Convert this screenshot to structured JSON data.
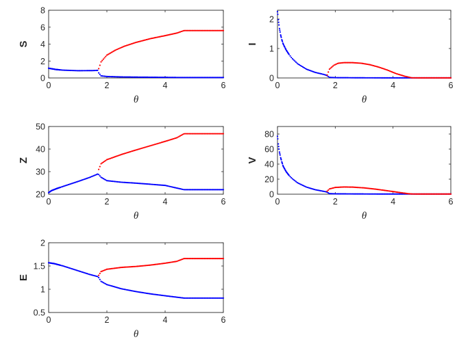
{
  "chart_data": [
    {
      "type": "scatter",
      "xlabel": "θ",
      "ylabel": "S",
      "xlim": [
        0,
        6
      ],
      "ylim": [
        0,
        8
      ],
      "xticks": [
        "0",
        "2",
        "4",
        "6"
      ],
      "yticks": [
        "0",
        "2",
        "4",
        "6",
        "8"
      ],
      "series": [
        {
          "color": "#0000ff",
          "x": [
            0,
            0.25,
            0.5,
            1.0,
            1.5,
            1.7,
            1.72,
            1.8,
            2.0,
            2.5,
            3,
            4,
            4.65,
            5,
            6
          ],
          "y": [
            1.15,
            1.0,
            0.92,
            0.86,
            0.87,
            0.9,
            0.6,
            0.25,
            0.17,
            0.12,
            0.1,
            0.07,
            0.05,
            0.05,
            0.05
          ]
        },
        {
          "color": "#ff0000",
          "x": [
            1.72,
            1.8,
            2.0,
            2.3,
            2.6,
            3.0,
            3.5,
            4.0,
            4.4,
            4.65,
            5,
            6
          ],
          "y": [
            1.1,
            1.9,
            2.7,
            3.3,
            3.75,
            4.2,
            4.65,
            5.0,
            5.3,
            5.6,
            5.6,
            5.6
          ]
        }
      ]
    },
    {
      "type": "scatter",
      "xlabel": "θ",
      "ylabel": "I",
      "xlim": [
        0,
        6
      ],
      "ylim": [
        0,
        2.3
      ],
      "xticks": [
        "0",
        "2",
        "4",
        "6"
      ],
      "yticks": [
        "0",
        "1",
        "2"
      ],
      "series": [
        {
          "color": "#0000ff",
          "x": [
            0,
            0.05,
            0.1,
            0.15,
            0.2,
            0.3,
            0.4,
            0.5,
            0.7,
            1.0,
            1.3,
            1.6,
            1.7,
            1.8,
            2.0,
            3,
            4,
            5,
            6
          ],
          "y": [
            2.25,
            1.8,
            1.5,
            1.3,
            1.15,
            0.95,
            0.8,
            0.67,
            0.48,
            0.3,
            0.19,
            0.12,
            0.09,
            0.02,
            0.01,
            0.005,
            0.003,
            0.003,
            0.003
          ]
        },
        {
          "color": "#ff0000",
          "x": [
            1.72,
            1.8,
            1.95,
            2.1,
            2.3,
            2.6,
            2.9,
            3.2,
            3.5,
            3.8,
            4.1,
            4.4,
            4.65,
            5,
            6
          ],
          "y": [
            0.1,
            0.3,
            0.43,
            0.5,
            0.52,
            0.52,
            0.5,
            0.45,
            0.37,
            0.27,
            0.15,
            0.06,
            0.005,
            0.003,
            0.003
          ]
        }
      ]
    },
    {
      "type": "scatter",
      "xlabel": "θ",
      "ylabel": "Z",
      "xlim": [
        0,
        6
      ],
      "ylim": [
        20,
        50
      ],
      "xticks": [
        "0",
        "2",
        "4",
        "6"
      ],
      "yticks": [
        "20",
        "30",
        "40",
        "50"
      ],
      "series": [
        {
          "color": "#0000ff",
          "x": [
            0,
            0.1,
            0.3,
            0.6,
            1.0,
            1.4,
            1.7,
            1.8,
            2.0,
            2.5,
            3.0,
            4.0,
            4.65,
            5,
            6
          ],
          "y": [
            20.7,
            21.6,
            22.6,
            23.9,
            25.6,
            27.4,
            29.0,
            27.5,
            26.0,
            25.3,
            24.9,
            23.9,
            22.0,
            22.0,
            22.0
          ]
        },
        {
          "color": "#ff0000",
          "x": [
            1.72,
            1.8,
            2.0,
            2.5,
            3.0,
            3.5,
            4.0,
            4.4,
            4.65,
            5,
            6
          ],
          "y": [
            31.0,
            33.5,
            35.3,
            37.6,
            39.6,
            41.5,
            43.4,
            45.0,
            46.8,
            46.8,
            46.8
          ]
        }
      ]
    },
    {
      "type": "scatter",
      "xlabel": "θ",
      "ylabel": "V",
      "xlim": [
        0,
        6
      ],
      "ylim": [
        0,
        90
      ],
      "xticks": [
        "0",
        "2",
        "4",
        "6"
      ],
      "yticks": [
        "0",
        "20",
        "40",
        "60",
        "80"
      ],
      "series": [
        {
          "color": "#0000ff",
          "x": [
            0,
            0.05,
            0.1,
            0.15,
            0.2,
            0.3,
            0.4,
            0.5,
            0.7,
            1.0,
            1.3,
            1.6,
            1.7,
            1.8,
            2.0,
            3,
            4,
            5,
            6
          ],
          "y": [
            77,
            60,
            50,
            43,
            37,
            30,
            25,
            21,
            15,
            9.5,
            6,
            3.8,
            3.0,
            0.8,
            0.5,
            0.3,
            0.2,
            0.2,
            0.2
          ]
        },
        {
          "color": "#ff0000",
          "x": [
            1.72,
            1.8,
            2.0,
            2.3,
            2.6,
            3.0,
            3.4,
            3.8,
            4.2,
            4.5,
            4.65,
            5,
            6
          ],
          "y": [
            4.0,
            7.0,
            9.0,
            9.6,
            9.4,
            8.4,
            6.7,
            4.6,
            2.4,
            0.8,
            0.3,
            0.2,
            0.2
          ]
        }
      ]
    },
    {
      "type": "scatter",
      "xlabel": "θ",
      "ylabel": "E",
      "xlim": [
        0,
        6
      ],
      "ylim": [
        0.5,
        2
      ],
      "xticks": [
        "0",
        "2",
        "4",
        "6"
      ],
      "yticks": [
        "0.5",
        "1",
        "1.5",
        "2"
      ],
      "series": [
        {
          "color": "#0000ff",
          "x": [
            0,
            0.2,
            0.5,
            0.8,
            1.1,
            1.4,
            1.7,
            1.8,
            2.0,
            2.5,
            3.0,
            3.5,
            4.0,
            4.65,
            5,
            6
          ],
          "y": [
            1.57,
            1.55,
            1.5,
            1.44,
            1.38,
            1.32,
            1.27,
            1.17,
            1.1,
            1.01,
            0.95,
            0.9,
            0.86,
            0.81,
            0.81,
            0.81
          ]
        },
        {
          "color": "#ff0000",
          "x": [
            1.72,
            1.8,
            2.0,
            2.5,
            3.0,
            3.5,
            4.0,
            4.4,
            4.65,
            5,
            6
          ],
          "y": [
            1.3,
            1.38,
            1.43,
            1.47,
            1.49,
            1.52,
            1.56,
            1.6,
            1.66,
            1.66,
            1.66
          ]
        }
      ]
    }
  ]
}
